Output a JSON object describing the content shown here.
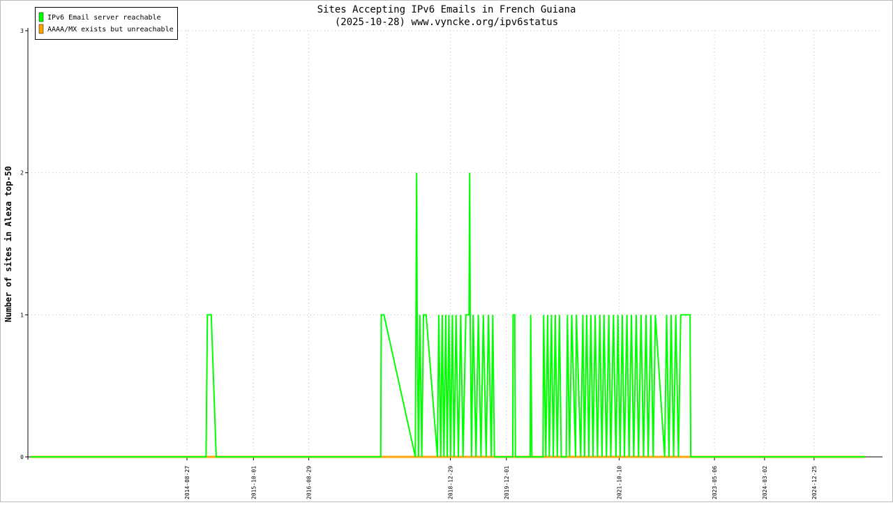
{
  "chart_data": {
    "type": "line",
    "title": "Sites Accepting IPv6 Emails in French Guiana",
    "subtitle": "(2025-10-28) www.vyncke.org/ipv6status",
    "y_label": "Number of sites in Alexa top-50",
    "xlim": [
      "2012-01-13",
      "2026-02-10"
    ],
    "xticks": [
      "2014-08-27",
      "2015-10-01",
      "2016-08-29",
      "2018-12-29",
      "2019-12-01",
      "2021-10-10",
      "2023-05-06",
      "2024-03-02",
      "2024-12-25"
    ],
    "ylim": [
      0,
      3
    ],
    "yticks": [
      0,
      1,
      2,
      3
    ],
    "grid": true,
    "legend": "upper left",
    "series": [
      {
        "name": "IPv6 Email server reachable",
        "color": "#00ff00",
        "x": [
          "2012-01-30",
          "2014-12-20",
          "2014-12-28",
          "2015-01-20",
          "2015-02-19",
          "2017-11-05",
          "2017-11-08",
          "2017-11-24",
          "2018-06-01",
          "2018-06-05",
          "2018-06-09",
          "2018-06-12",
          "2018-06-20",
          "2018-06-28",
          "2018-07-10",
          "2018-07-20",
          "2018-08-05",
          "2018-10-12",
          "2018-10-20",
          "2018-11-01",
          "2018-11-10",
          "2018-11-20",
          "2018-12-01",
          "2018-12-10",
          "2018-12-20",
          "2018-12-30",
          "2019-01-10",
          "2019-01-20",
          "2019-02-01",
          "2019-02-15",
          "2019-03-01",
          "2019-03-15",
          "2019-04-01",
          "2019-04-20",
          "2019-04-24",
          "2019-04-27",
          "2019-05-05",
          "2019-05-15",
          "2019-06-01",
          "2019-06-15",
          "2019-07-01",
          "2019-07-15",
          "2019-08-01",
          "2019-08-15",
          "2019-09-01",
          "2019-09-10",
          "2019-09-20",
          "2020-01-08",
          "2020-01-10",
          "2020-01-20",
          "2020-01-24",
          "2020-04-22",
          "2020-04-25",
          "2020-05-02",
          "2020-07-08",
          "2020-07-12",
          "2020-07-25",
          "2020-08-05",
          "2020-08-15",
          "2020-08-28",
          "2020-09-08",
          "2020-09-20",
          "2020-10-02",
          "2020-10-15",
          "2020-10-26",
          "2020-11-25",
          "2020-12-02",
          "2020-12-15",
          "2020-12-28",
          "2021-01-20",
          "2021-01-25",
          "2021-02-20",
          "2021-03-05",
          "2021-03-15",
          "2021-03-28",
          "2021-04-10",
          "2021-04-22",
          "2021-05-05",
          "2021-05-18",
          "2021-06-01",
          "2021-06-15",
          "2021-06-28",
          "2021-07-10",
          "2021-07-25",
          "2021-08-08",
          "2021-08-20",
          "2021-09-05",
          "2021-09-20",
          "2021-10-02",
          "2021-10-15",
          "2021-10-28",
          "2021-11-10",
          "2021-11-25",
          "2021-12-08",
          "2021-12-22",
          "2022-01-05",
          "2022-01-20",
          "2022-02-03",
          "2022-02-18",
          "2022-03-05",
          "2022-03-20",
          "2022-04-02",
          "2022-04-18",
          "2022-05-02",
          "2022-05-15",
          "2022-07-10",
          "2022-07-22",
          "2022-08-05",
          "2022-08-18",
          "2022-09-02",
          "2022-09-15",
          "2022-10-01",
          "2022-10-15",
          "2022-12-10",
          "2022-12-14",
          "2025-10-28"
        ],
        "values": [
          0,
          0,
          1,
          1,
          0,
          0,
          1,
          1,
          0,
          1,
          2,
          1,
          0,
          1,
          0,
          1,
          1,
          0,
          1,
          0,
          1,
          0,
          1,
          0,
          1,
          0,
          1,
          0,
          1,
          0,
          1,
          0,
          1,
          1,
          2,
          1,
          0,
          1,
          0,
          1,
          0,
          1,
          0,
          1,
          0,
          1,
          0,
          0,
          1,
          1,
          0,
          0,
          1,
          0,
          0,
          1,
          0,
          1,
          0,
          1,
          0,
          1,
          0,
          1,
          0,
          0,
          1,
          0,
          1,
          0,
          1,
          0,
          1,
          0,
          1,
          0,
          1,
          0,
          1,
          0,
          1,
          0,
          1,
          0,
          1,
          0,
          1,
          0,
          1,
          0,
          1,
          0,
          1,
          0,
          1,
          0,
          1,
          0,
          1,
          0,
          1,
          0,
          1,
          0,
          1,
          0,
          1,
          0,
          1,
          0,
          1,
          0,
          1,
          1,
          0,
          0
        ]
      },
      {
        "name": "AAAA/MX exists but unreachable",
        "color": "#ffa500",
        "x": [
          "2012-01-30",
          "2025-10-28"
        ],
        "values": [
          0,
          0
        ]
      }
    ]
  }
}
